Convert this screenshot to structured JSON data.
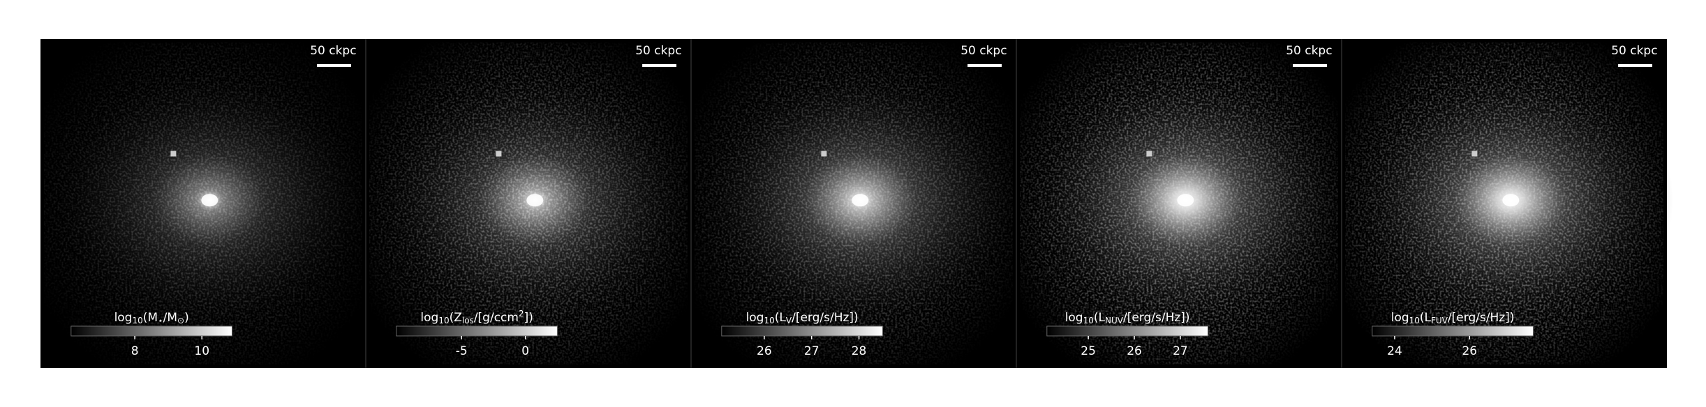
{
  "panels": [
    {
      "scalebar": "50 ckpc",
      "colorbar": {
        "label": [
          "log",
          {
            "sub": "10"
          },
          "(M",
          {
            "sub": "⋆"
          },
          "/M",
          {
            "sub": "⊙"
          },
          ")"
        ],
        "lim": [
          6.1,
          10.9
        ],
        "ticks": [
          8,
          10
        ]
      }
    },
    {
      "scalebar": "50 ckpc",
      "colorbar": {
        "label": [
          "log",
          {
            "sub": "10"
          },
          "(Z",
          {
            "sub": "los"
          },
          "/[g/ccm",
          {
            "sup": "2"
          },
          "])"
        ],
        "lim": [
          -10.1,
          2.5
        ],
        "ticks": [
          -5,
          0
        ]
      }
    },
    {
      "scalebar": "50 ckpc",
      "colorbar": {
        "label": [
          "log",
          {
            "sub": "10"
          },
          "(L",
          {
            "sub": "V"
          },
          "/[erg/s/Hz])"
        ],
        "lim": [
          25.1,
          28.5
        ],
        "ticks": [
          26,
          27,
          28
        ]
      }
    },
    {
      "scalebar": "50 ckpc",
      "colorbar": {
        "label": [
          "log",
          {
            "sub": "10"
          },
          "(L",
          {
            "sub": "NUV"
          },
          "/[erg/s/Hz])"
        ],
        "lim": [
          24.1,
          27.6
        ],
        "ticks": [
          25,
          26,
          27
        ]
      }
    },
    {
      "scalebar": "50 ckpc",
      "colorbar": {
        "label": [
          "log",
          {
            "sub": "10"
          },
          "(L",
          {
            "sub": "FUV"
          },
          "/[erg/s/Hz])"
        ],
        "lim": [
          23.4,
          27.7
        ],
        "ticks": [
          24,
          26
        ]
      }
    }
  ]
}
